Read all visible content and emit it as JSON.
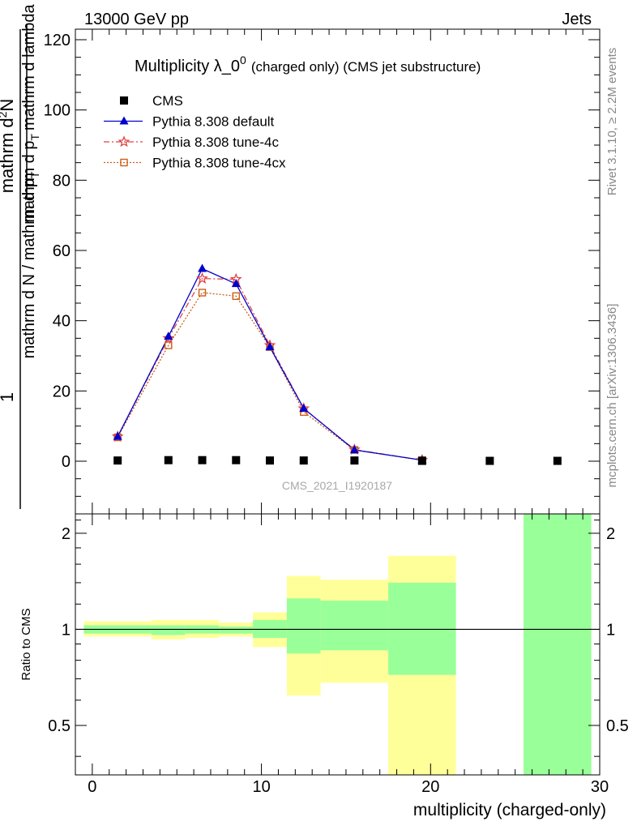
{
  "header": {
    "energy_label": "13000 GeV pp",
    "process_label": "Jets"
  },
  "side_labels": {
    "rivet": "Rivet 3.1.10, ≥ 2.2M events",
    "mcplots": "mcplots.cern.ch [arXiv:1306.3436]"
  },
  "chart_data": [
    {
      "type": "line",
      "title": "Multiplicity λ_0",
      "title_sup": "0",
      "title_suffix": "(charged only) (CMS jet substructure)",
      "watermark": "CMS_2021_I1920187",
      "ylabel": {
        "frac_num": "1",
        "frac_den": "mathrm d N / mathrm d p",
        "frac_den_sub": "T",
        "rhs_num": "mathrm d",
        "rhs_num_sup": "2",
        "rhs_num_tail": "N",
        "rhs_den": "mathrm d p",
        "rhs_den_sub": "T",
        "rhs_den_tail": "mathrm d lambda"
      },
      "xlim": [
        -1,
        30
      ],
      "ylim": [
        -15,
        123
      ],
      "y_ticks": [
        0,
        20,
        40,
        60,
        80,
        100,
        120
      ],
      "legend_position": "top-left",
      "series": [
        {
          "name": "CMS",
          "color": "#000000",
          "marker": "square",
          "x": [
            1.5,
            4.5,
            6.5,
            8.5,
            10.5,
            12.5,
            15.5,
            19.5,
            23.5,
            27.5
          ],
          "y": [
            0.2,
            0.3,
            0.3,
            0.3,
            0.2,
            0.2,
            0.2,
            0.1,
            0.1,
            0.1
          ]
        },
        {
          "name": "Pythia 8.308 default",
          "color": "#0000cc",
          "marker": "triangle",
          "dash": "solid",
          "x": [
            1.5,
            4.5,
            6.5,
            8.5,
            10.5,
            12.5,
            15.5,
            19.5
          ],
          "y": [
            7.0,
            35.5,
            54.8,
            50.5,
            32.5,
            15.0,
            3.2,
            0.3
          ]
        },
        {
          "name": "Pythia 8.308 tune-4c",
          "color": "#e04545",
          "marker": "star",
          "dash": "dashdot",
          "x": [
            1.5,
            4.5,
            6.5,
            8.5,
            10.5,
            12.5,
            15.5,
            19.5
          ],
          "y": [
            7.0,
            35.0,
            52.0,
            51.8,
            33.0,
            15.0,
            3.3,
            0.3
          ]
        },
        {
          "name": "Pythia 8.308 tune-4cx",
          "color": "#c8601a",
          "marker": "open-square",
          "dash": "dotted",
          "x": [
            1.5,
            4.5,
            6.5,
            8.5,
            10.5,
            12.5,
            15.5,
            19.5
          ],
          "y": [
            6.8,
            33.0,
            48.0,
            47.0,
            32.5,
            14.0,
            3.2,
            0.3
          ]
        }
      ]
    },
    {
      "type": "area",
      "ylabel": "Ratio to CMS",
      "xlabel": "multiplicity (charged-only)",
      "xlim": [
        -1,
        30
      ],
      "ylim": [
        0.35,
        2.3
      ],
      "x_ticks": [
        0,
        10,
        20,
        30
      ],
      "y_ticks": [
        0.5,
        1,
        2
      ],
      "y_tick_labels": [
        "0.5",
        "1",
        "2"
      ],
      "reference": 1,
      "bands": {
        "outer_color": "#ffff99",
        "inner_color": "#99ff99",
        "bins": [
          {
            "lo": -0.5,
            "hi": 3.5,
            "outer": [
              0.95,
              1.06
            ],
            "inner": [
              0.97,
              1.03
            ]
          },
          {
            "lo": 3.5,
            "hi": 5.5,
            "outer": [
              0.93,
              1.07
            ],
            "inner": [
              0.96,
              1.03
            ]
          },
          {
            "lo": 5.5,
            "hi": 7.5,
            "outer": [
              0.94,
              1.07
            ],
            "inner": [
              0.97,
              1.03
            ]
          },
          {
            "lo": 7.5,
            "hi": 9.5,
            "outer": [
              0.95,
              1.05
            ],
            "inner": [
              0.97,
              1.02
            ]
          },
          {
            "lo": 9.5,
            "hi": 11.5,
            "outer": [
              0.88,
              1.13
            ],
            "inner": [
              0.94,
              1.07
            ]
          },
          {
            "lo": 11.5,
            "hi": 13.5,
            "outer": [
              0.62,
              1.47
            ],
            "inner": [
              0.84,
              1.25
            ]
          },
          {
            "lo": 13.5,
            "hi": 17.5,
            "outer": [
              0.68,
              1.43
            ],
            "inner": [
              0.86,
              1.23
            ]
          },
          {
            "lo": 17.5,
            "hi": 21.5,
            "outer": [
              0.35,
              1.7
            ],
            "inner": [
              0.72,
              1.4
            ]
          },
          {
            "lo": 25.5,
            "hi": 29.5,
            "outer": [
              0.35,
              2.3
            ],
            "inner": [
              0.35,
              2.3
            ]
          }
        ]
      }
    }
  ]
}
